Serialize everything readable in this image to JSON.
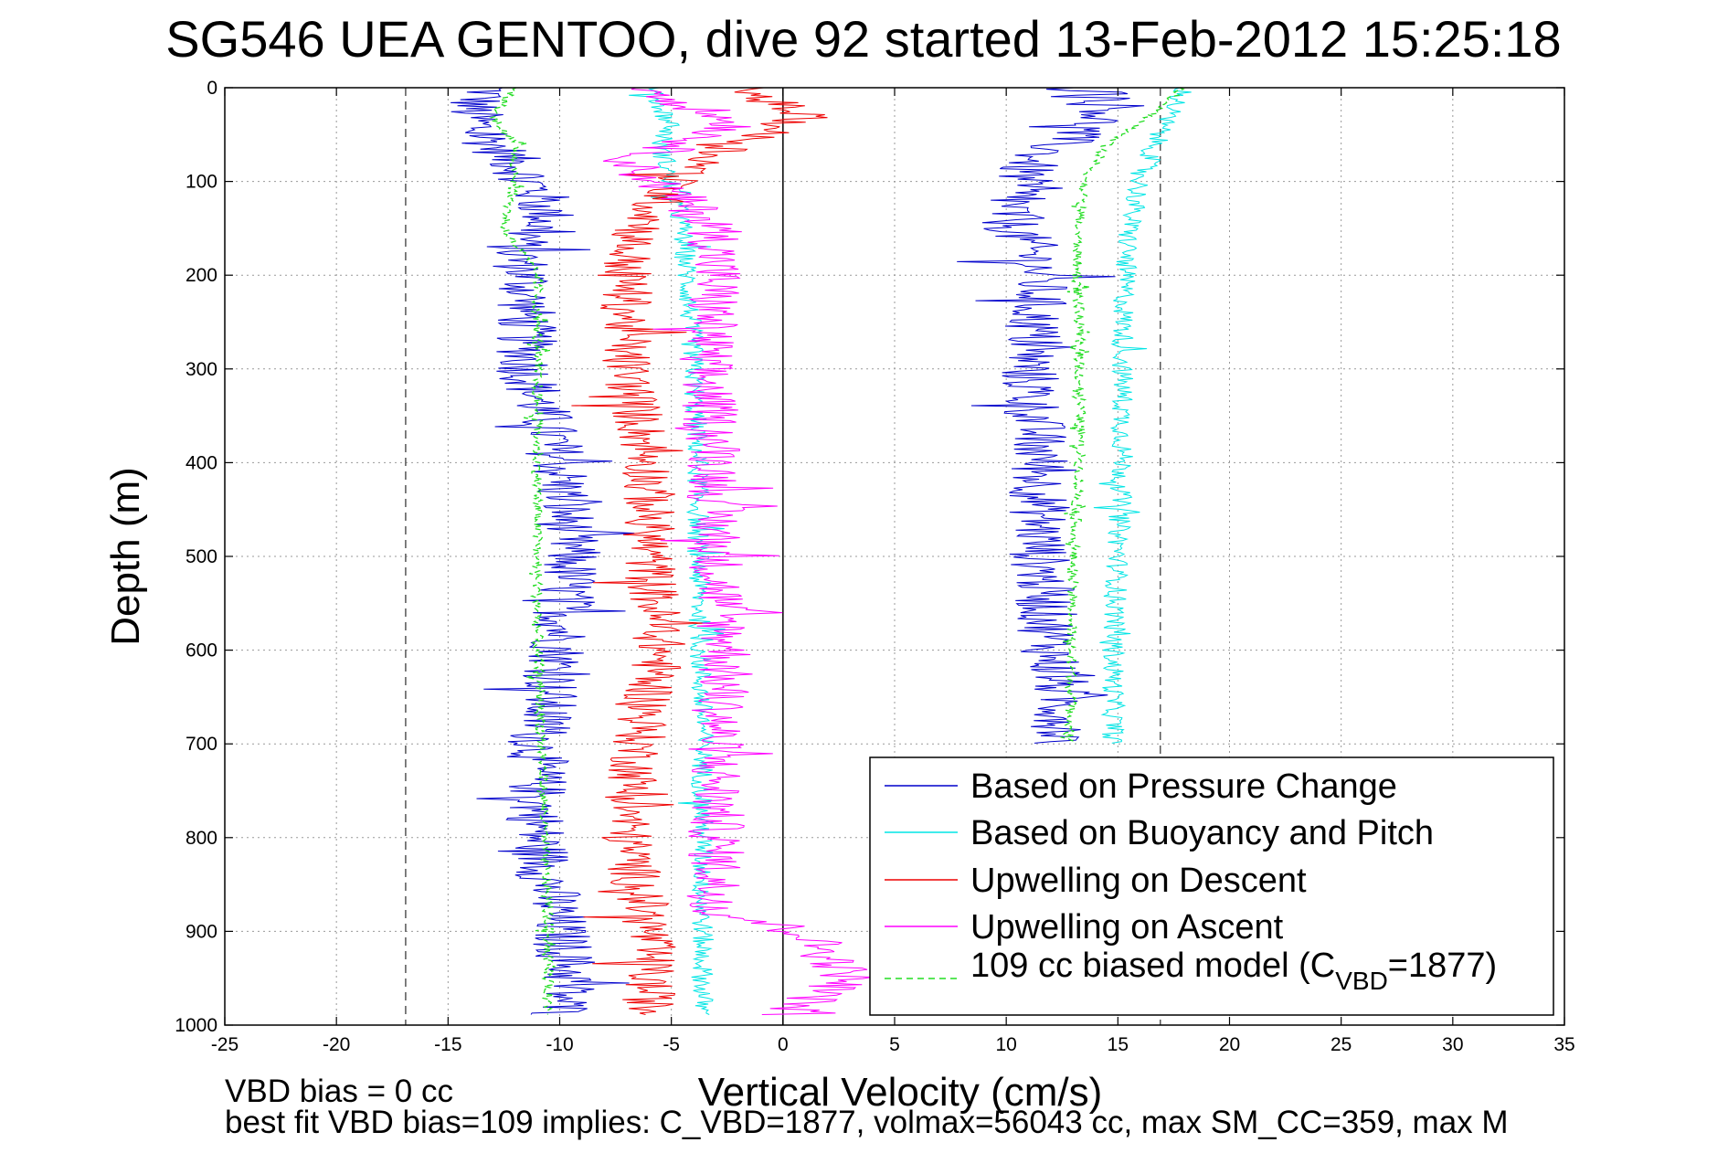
{
  "chart_data": {
    "type": "line",
    "title": "SG546 UEA GENTOO, dive 92 started 13-Feb-2012 15:25:18",
    "xlabel": "Vertical Velocity (cm/s)",
    "ylabel": "Depth (m)",
    "xlim": [
      -25,
      35
    ],
    "ylim": [
      0,
      1000
    ],
    "y_reversed": true,
    "grid": true,
    "xticks": [
      -25,
      -20,
      -15,
      -10,
      -5,
      0,
      5,
      10,
      15,
      20,
      25,
      30,
      35
    ],
    "yticks": [
      0,
      100,
      200,
      300,
      400,
      500,
      600,
      700,
      800,
      900,
      1000
    ],
    "reference_lines": [
      {
        "x": -16.9,
        "style": "dashed",
        "color": "#555555"
      },
      {
        "x": 16.9,
        "style": "dashed",
        "color": "#555555"
      },
      {
        "x": 0,
        "style": "solid",
        "color": "#000000"
      }
    ],
    "legend_position": "bottom-right",
    "series": [
      {
        "name": "Based on Pressure Change",
        "color": "#0000cc",
        "noise": 1.4,
        "segments": [
          {
            "depth": [
              0,
              20,
              50,
              80,
              110,
              140,
              170,
              200,
              300,
              400,
              500,
              600,
              700,
              800,
              900,
              950,
              990
            ],
            "velocity": [
              -13,
              -14,
              -13.5,
              -12,
              -11,
              -10.5,
              -12,
              -11.5,
              -11.5,
              -10,
              -9.5,
              -10,
              -11,
              -11,
              -10,
              -9.5,
              -10
            ]
          },
          {
            "depth": [
              0,
              20,
              50,
              80,
              110,
              140,
              170,
              200,
              300,
              400,
              500,
              600,
              650,
              700
            ],
            "velocity": [
              14,
              15,
              13,
              11,
              10.5,
              10,
              11,
              11.5,
              11,
              11.5,
              11.5,
              12,
              12.5,
              12.5
            ]
          }
        ]
      },
      {
        "name": "Based on Buoyancy and Pitch",
        "color": "#00e5e5",
        "noise": 0.5,
        "segments": [
          {
            "depth": [
              0,
              40,
              60,
              100,
              150,
              200,
              300,
              400,
              500,
              600,
              700,
              800,
              900,
              990
            ],
            "velocity": [
              -6,
              -5,
              -5.5,
              -5,
              -4.5,
              -4.3,
              -4,
              -3.8,
              -3.8,
              -3.7,
              -3.6,
              -3.6,
              -3.6,
              -3.6
            ]
          },
          {
            "depth": [
              0,
              40,
              100,
              150,
              200,
              300,
              400,
              500,
              600,
              700
            ],
            "velocity": [
              18,
              17,
              16,
              15.5,
              15.3,
              15.2,
              15.2,
              15.0,
              14.8,
              14.8
            ]
          }
        ]
      },
      {
        "name": "Upwelling on Descent",
        "color": "#ee0000",
        "noise": 1.2,
        "segments": [
          {
            "depth": [
              0,
              30,
              60,
              100,
              140,
              170,
              200,
              300,
              400,
              500,
              600,
              700,
              800,
              900,
              990
            ],
            "velocity": [
              -2,
              1,
              -2,
              -5,
              -6,
              -7,
              -7,
              -7,
              -6,
              -6,
              -5.5,
              -6.5,
              -7,
              -6,
              -6
            ]
          }
        ]
      },
      {
        "name": "Upwelling on Ascent",
        "color": "#ff00ff",
        "noise": 1.3,
        "segments": [
          {
            "depth": [
              0,
              40,
              80,
              120,
              150,
              200,
              300,
              400,
              500,
              600,
              700,
              800,
              880,
              900,
              950,
              990
            ],
            "velocity": [
              -6,
              -2,
              -7,
              -4.5,
              -3,
              -3,
              -3.5,
              -3,
              -3,
              -2.5,
              -3,
              -3,
              -3,
              1,
              3,
              0
            ]
          }
        ]
      },
      {
        "name": "109 cc biased model (C_VBD=1877)",
        "color": "#22dd22",
        "dashed": true,
        "noise": 0.25,
        "segments": [
          {
            "depth": [
              0,
              30,
              60,
              100,
              150,
              200,
              300,
              400,
              500,
              600,
              700,
              800,
              900,
              990
            ],
            "velocity": [
              -12,
              -13,
              -12,
              -12,
              -12.5,
              -11,
              -11,
              -11,
              -11,
              -11,
              -10.8,
              -10.7,
              -10.5,
              -10.5
            ]
          },
          {
            "depth": [
              0,
              30,
              60,
              100,
              150,
              200,
              300,
              400,
              500,
              600,
              700
            ],
            "velocity": [
              18,
              16.5,
              14.5,
              13.5,
              13.2,
              13.2,
              13.3,
              13.3,
              13.0,
              12.9,
              12.9
            ]
          }
        ]
      }
    ],
    "legend": {
      "entries": [
        "Based on Pressure Change",
        "Based on Buoyancy and Pitch",
        "Upwelling on Descent",
        "Upwelling on Ascent",
        "109 cc biased model (C"
      ],
      "last_entry_subscript": "VBD",
      "last_entry_suffix": "=1877)"
    },
    "annotations": [
      "VBD bias = 0 cc",
      "best fit VBD bias=109 implies: C_VBD=1877, volmax=56043 cc, max SM_CC=359, max M"
    ]
  }
}
